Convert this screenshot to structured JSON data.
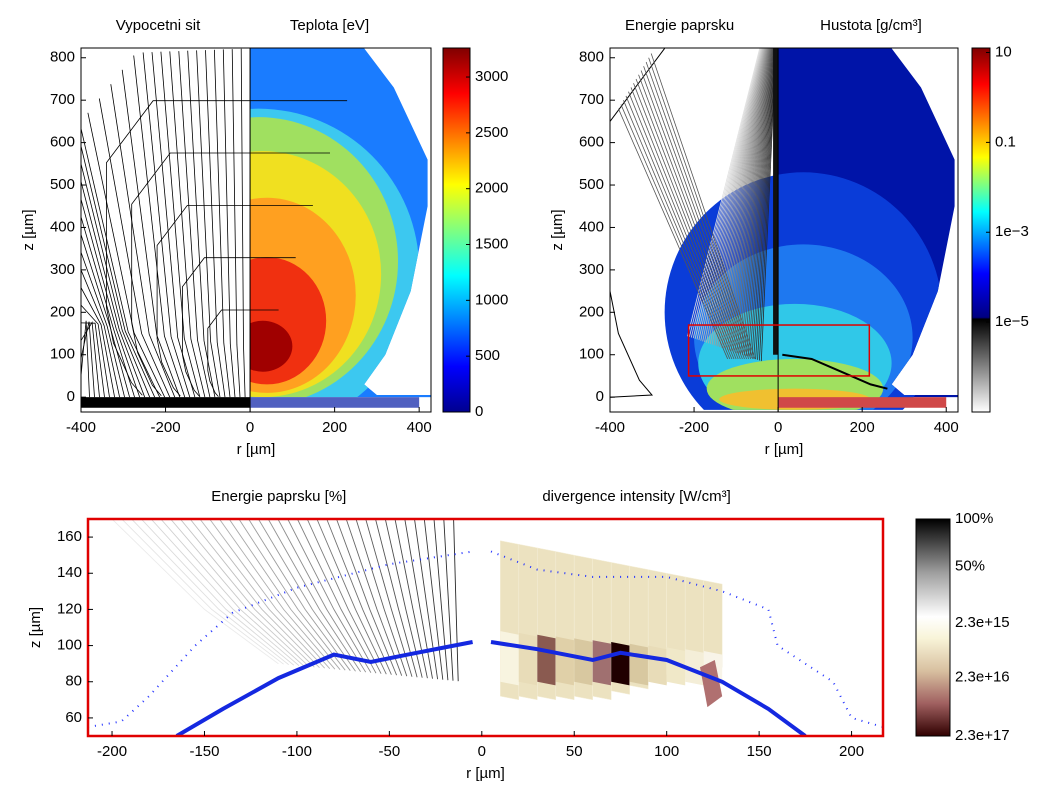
{
  "chart_data": [
    {
      "type": "field",
      "titles": [
        "Vypocetni sit",
        "Teplota [eV]"
      ],
      "xlabel": "r [µm]",
      "ylabel": "z [µm]",
      "xlim": [
        -400,
        428
      ],
      "xticks": [
        -400,
        -200,
        0,
        200,
        400
      ],
      "ylim": [
        -35,
        823
      ],
      "yticks": [
        0,
        100,
        200,
        300,
        400,
        500,
        600,
        700,
        800
      ],
      "colorbar": {
        "colormap": "jet",
        "lim": [
          0,
          3260
        ],
        "ticks": [
          0,
          500,
          1000,
          1500,
          2000,
          2500,
          3000
        ]
      }
    },
    {
      "type": "field",
      "titles": [
        "Energie paprsku",
        "Hustota [g/cm³]"
      ],
      "xlabel": "r [µm]",
      "ylabel": "z [µm]",
      "xlim": [
        -400,
        428
      ],
      "xticks": [
        -400,
        -200,
        0,
        200,
        400
      ],
      "ylim": [
        -35,
        823
      ],
      "yticks": [
        0,
        100,
        200,
        300,
        400,
        500,
        600,
        700,
        800
      ],
      "colorbar": {
        "colormap": "jet-gray",
        "log": true,
        "lim": [
          1e-07,
          12.6
        ],
        "ticks": [
          10,
          0.1,
          {
            "value": 0.001,
            "label": "1e−3"
          },
          {
            "value": 1e-05,
            "label": "1e−5"
          }
        ]
      }
    },
    {
      "type": "field",
      "titles": [
        "Energie paprsku [%]",
        "divergence intensity [W/cm³]"
      ],
      "xlabel": "r [µm]",
      "ylabel": "z [µm]",
      "xlim": [
        -213,
        217
      ],
      "xticks": [
        -200,
        -150,
        -100,
        -50,
        0,
        50,
        100,
        150,
        200
      ],
      "ylim": [
        50,
        170
      ],
      "yticks": [
        60,
        80,
        100,
        120,
        140,
        160
      ],
      "colorbar": {
        "colormap": "bone-pink",
        "labels": [
          "100%",
          "50%",
          "2.3e+15",
          "2.3e+16",
          "2.3e+17"
        ]
      }
    }
  ]
}
